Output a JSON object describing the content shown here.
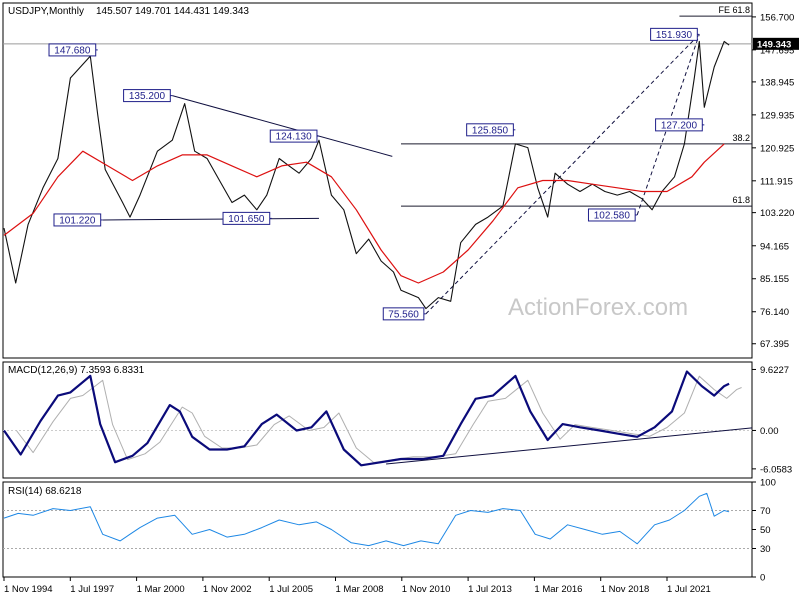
{
  "chart_data": {
    "type": "line",
    "title": "USDJPY,Monthly",
    "ohlc": [
      "145.507",
      "149.701",
      "144.431",
      "149.343"
    ],
    "watermark": "ActionForex.com",
    "x_ticks": [
      "1 Nov 1994",
      "1 Jul 1997",
      "1 Mar 2000",
      "1 Nov 2002",
      "1 Jul 2005",
      "1 Mar 2008",
      "1 Nov 2010",
      "1 Jul 2013",
      "1 Mar 2016",
      "1 Nov 2018",
      "1 Jul 2021"
    ],
    "price_panel": {
      "ylim": [
        63.5,
        160.5
      ],
      "y_ticks": [
        "156.700",
        "147.695",
        "138.945",
        "129.935",
        "120.925",
        "111.915",
        "103.220",
        "94.165",
        "85.155",
        "76.140",
        "67.395"
      ],
      "current_price": "149.343",
      "ma_color": "#dd1111",
      "close_series": {
        "t": [
          1994.83,
          1995.3,
          1995.8,
          1996.4,
          1997.0,
          1997.5,
          1998.3,
          1998.6,
          1998.9,
          1999.6,
          1999.9,
          2000.3,
          2001.0,
          2001.6,
          2002.1,
          2002.5,
          2003.0,
          2003.5,
          2004.0,
          2004.5,
          2005.0,
          2005.4,
          2005.9,
          2006.3,
          2006.7,
          2007.2,
          2007.5,
          2008.0,
          2008.5,
          2009.0,
          2009.5,
          2010.0,
          2010.5,
          2010.8,
          2011.5,
          2011.8,
          2012.3,
          2012.8,
          2013.2,
          2013.8,
          2014.3,
          2014.9,
          2015.4,
          2015.9,
          2016.3,
          2016.7,
          2017.0,
          2017.5,
          2018.0,
          2018.5,
          2019.0,
          2019.5,
          2020.0,
          2020.5,
          2020.9,
          2021.3,
          2021.8,
          2022.2,
          2022.6,
          2022.8,
          2023.0,
          2023.4,
          2023.8,
          2024.0
        ],
        "v": [
          99,
          84,
          100,
          110,
          118,
          140,
          146,
          130,
          115,
          106,
          102,
          108,
          120,
          123,
          133,
          120,
          118,
          112,
          106,
          108,
          104,
          108,
          118,
          116,
          114,
          118,
          123,
          108,
          104,
          92,
          96,
          90,
          87,
          82,
          80,
          77,
          80,
          79,
          95,
          100,
          102,
          105,
          122,
          121,
          110,
          102,
          114,
          111,
          109,
          111,
          109,
          108,
          109,
          107,
          104,
          109,
          113,
          122,
          140,
          150,
          132,
          143,
          150,
          149
        ]
      },
      "ma_series": {
        "t": [
          1994.83,
          1996.0,
          1997.0,
          1998.0,
          1999.0,
          2000.0,
          2001.0,
          2002.0,
          2003.0,
          2004.0,
          2005.0,
          2006.0,
          2007.0,
          2008.0,
          2009.0,
          2010.0,
          2010.8,
          2011.5,
          2012.5,
          2013.5,
          2014.5,
          2015.5,
          2016.5,
          2017.5,
          2018.5,
          2019.5,
          2020.5,
          2021.5,
          2022.5,
          2023.0,
          2023.8
        ],
        "v": [
          97,
          103,
          113,
          120,
          116,
          112,
          116,
          119,
          119,
          116,
          113,
          116,
          117,
          113,
          104,
          93,
          86,
          84,
          87,
          93,
          101,
          110,
          112,
          112,
          111,
          110,
          109,
          109,
          113,
          117,
          122
        ]
      },
      "levels": [
        {
          "label": "FE 61.8",
          "value": 156.9
        },
        {
          "label": "38.2",
          "value": 122.0
        },
        {
          "label": "61.8",
          "value": 105.0
        }
      ],
      "peak_labels": [
        {
          "text": "147.680",
          "t": 1998.6,
          "v": 147.68
        },
        {
          "text": "135.200",
          "t": 2001.6,
          "v": 135.2
        },
        {
          "text": "124.130",
          "t": 2007.5,
          "v": 124.13
        },
        {
          "text": "101.220",
          "t": 1998.8,
          "v": 101.22
        },
        {
          "text": "101.650",
          "t": 2005.6,
          "v": 101.65
        },
        {
          "text": "75.560",
          "t": 2011.8,
          "v": 75.56
        },
        {
          "text": "125.850",
          "t": 2015.4,
          "v": 125.85
        },
        {
          "text": "102.580",
          "t": 2020.3,
          "v": 102.58
        },
        {
          "text": "127.200",
          "t": 2023.0,
          "v": 127.2
        },
        {
          "text": "151.930",
          "t": 2022.8,
          "v": 151.93
        }
      ]
    },
    "macd_panel": {
      "label": "MACD(12,26,9) 7.3593 6.8331",
      "ylim": [
        -7.5,
        10.8
      ],
      "y_ticks": [
        "9.6227",
        "0.00",
        "-6.0583"
      ],
      "series": {
        "t": [
          1994.83,
          1995.5,
          1996.3,
          1997.0,
          1997.5,
          1998.3,
          1998.7,
          1999.3,
          2000.0,
          2000.6,
          2001.5,
          2001.9,
          2002.4,
          2003.1,
          2003.8,
          2004.5,
          2005.2,
          2005.8,
          2006.6,
          2007.2,
          2007.8,
          2008.5,
          2009.2,
          2010.0,
          2010.8,
          2011.7,
          2012.5,
          2013.2,
          2013.8,
          2014.5,
          2015.4,
          2016.0,
          2016.7,
          2017.3,
          2018.0,
          2018.8,
          2019.5,
          2020.3,
          2021.0,
          2021.7,
          2022.3,
          2022.9,
          2023.4,
          2023.8,
          2024.0
        ],
        "v": [
          0,
          -3.8,
          1.5,
          5.5,
          6.0,
          8.6,
          1.0,
          -5.0,
          -4.0,
          -2.0,
          4.0,
          3.0,
          -1.0,
          -3.0,
          -3.0,
          -2.5,
          1.0,
          2.5,
          0.0,
          0.5,
          3.0,
          -3.0,
          -5.5,
          -5.0,
          -4.5,
          -4.5,
          -4.0,
          1.0,
          5.0,
          5.5,
          8.6,
          3.0,
          -1.5,
          1.0,
          0.5,
          0.0,
          -0.5,
          -1.0,
          0.5,
          3.0,
          9.3,
          7.0,
          5.5,
          7.0,
          7.36
        ]
      }
    },
    "rsi_panel": {
      "label": "RSI(14) 68.6218",
      "ylim": [
        0,
        100
      ],
      "y_ticks": [
        "100",
        "70",
        "50",
        "30",
        "0"
      ],
      "series": {
        "t": [
          1994.83,
          1995.4,
          1996.0,
          1996.8,
          1997.5,
          1998.3,
          1998.8,
          1999.5,
          2000.3,
          2001.0,
          2001.7,
          2002.4,
          2003.1,
          2003.8,
          2004.5,
          2005.2,
          2005.9,
          2006.7,
          2007.4,
          2008.0,
          2008.8,
          2009.5,
          2010.2,
          2010.9,
          2011.6,
          2012.3,
          2013.0,
          2013.6,
          2014.3,
          2014.9,
          2015.6,
          2016.2,
          2016.8,
          2017.5,
          2018.2,
          2018.9,
          2019.6,
          2020.3,
          2021.0,
          2021.6,
          2022.2,
          2022.8,
          2023.1,
          2023.4,
          2023.8,
          2024.0
        ],
        "v": [
          62,
          67,
          65,
          72,
          70,
          74,
          45,
          38,
          52,
          62,
          65,
          45,
          50,
          42,
          45,
          52,
          60,
          55,
          58,
          50,
          36,
          33,
          38,
          33,
          38,
          35,
          65,
          70,
          68,
          72,
          70,
          45,
          40,
          55,
          50,
          45,
          48,
          35,
          55,
          60,
          70,
          85,
          88,
          64,
          70,
          68.6
        ]
      }
    }
  }
}
